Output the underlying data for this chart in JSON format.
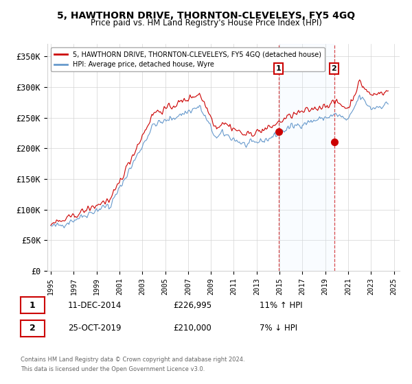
{
  "title": "5, HAWTHORN DRIVE, THORNTON-CLEVELEYS, FY5 4GQ",
  "subtitle": "Price paid vs. HM Land Registry's House Price Index (HPI)",
  "ylabel_ticks": [
    "£0",
    "£50K",
    "£100K",
    "£150K",
    "£200K",
    "£250K",
    "£300K",
    "£350K"
  ],
  "ytick_vals": [
    0,
    50000,
    100000,
    150000,
    200000,
    250000,
    300000,
    350000
  ],
  "ylim": [
    0,
    370000
  ],
  "legend_line1": "5, HAWTHORN DRIVE, THORNTON-CLEVELEYS, FY5 4GQ (detached house)",
  "legend_line2": "HPI: Average price, detached house, Wyre",
  "annotation1_label": "1",
  "annotation1_date": "11-DEC-2014",
  "annotation1_price": "£226,995",
  "annotation1_pct": "11% ↑ HPI",
  "annotation2_label": "2",
  "annotation2_date": "25-OCT-2019",
  "annotation2_price": "£210,000",
  "annotation2_pct": "7% ↓ HPI",
  "footer1": "Contains HM Land Registry data © Crown copyright and database right 2024.",
  "footer2": "This data is licensed under the Open Government Licence v3.0.",
  "red_color": "#cc0000",
  "blue_color": "#6699cc",
  "shade_color": "#ddeeff",
  "point1_x": 2014.94,
  "point1_y": 226995,
  "point2_x": 2019.81,
  "point2_y": 210000,
  "xtick_years": [
    1995,
    1997,
    1999,
    2001,
    2003,
    2005,
    2007,
    2009,
    2011,
    2013,
    2015,
    2017,
    2019,
    2021,
    2023,
    2025
  ]
}
